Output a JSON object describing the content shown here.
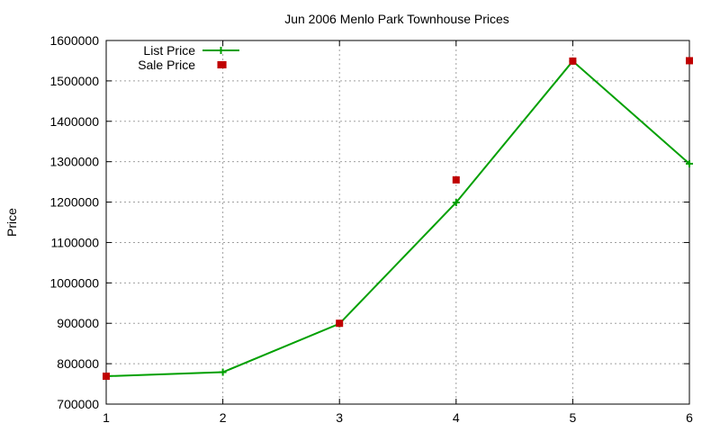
{
  "chart_data": {
    "type": "line",
    "title": "Jun 2006 Menlo Park Townhouse Prices",
    "xlabel": "",
    "ylabel": "Price",
    "x": [
      1,
      2,
      3,
      4,
      5,
      6
    ],
    "xlim": [
      1,
      6
    ],
    "ylim": [
      700000,
      1600000
    ],
    "x_ticks": [
      "1",
      "2",
      "3",
      "4",
      "5",
      "6"
    ],
    "y_ticks": [
      "700000",
      "800000",
      "900000",
      "1000000",
      "1100000",
      "1200000",
      "1300000",
      "1400000",
      "1500000",
      "1600000"
    ],
    "grid": true,
    "legend_position": "top-left",
    "series": [
      {
        "name": "List Price",
        "type": "line",
        "marker": "plus",
        "color": "#00a000",
        "values": [
          769000,
          779000,
          899000,
          1199000,
          1549000,
          1295000
        ]
      },
      {
        "name": "Sale Price",
        "type": "scatter",
        "marker": "square",
        "color": "#c00000",
        "values": [
          769000,
          1540000,
          900000,
          1255000,
          1549000,
          1550000
        ]
      }
    ]
  }
}
